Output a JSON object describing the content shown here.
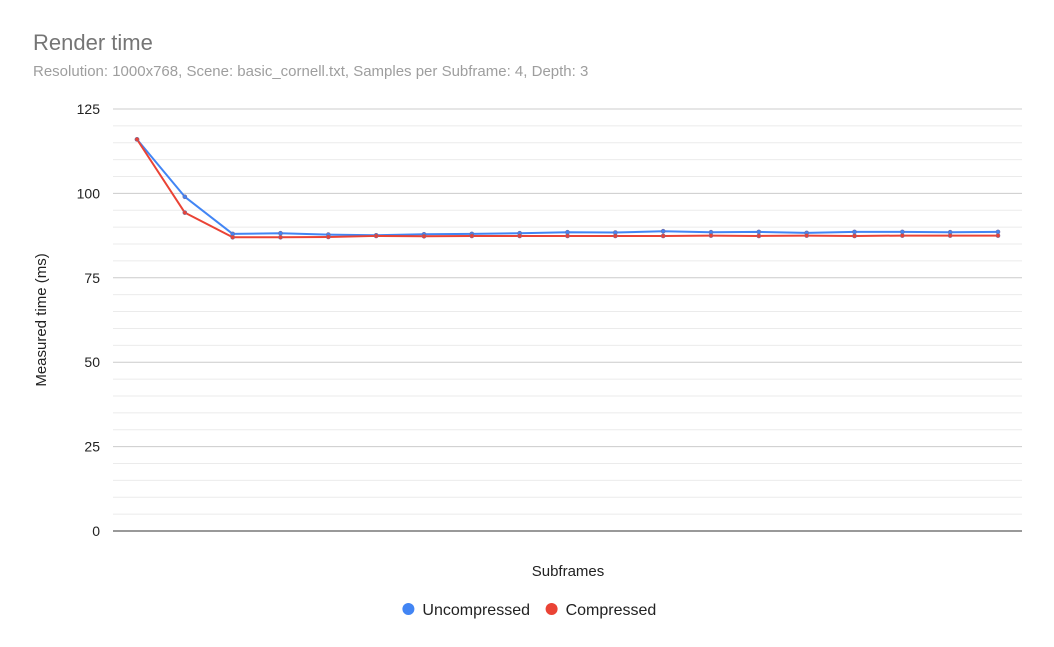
{
  "chart_data": {
    "type": "line",
    "title": "Render time",
    "subtitle": "Resolution: 1000x768, Scene: basic_cornell.txt, Samples per Subframe: 4, Depth: 3",
    "xlabel": "Subframes",
    "ylabel": "Measured time (ms)",
    "ylim": [
      0,
      125
    ],
    "yticks": [
      "0",
      "25",
      "50",
      "75",
      "100",
      "125"
    ],
    "grid": true,
    "legend_position": "bottom",
    "x": [
      1,
      2,
      3,
      4,
      5,
      6,
      7,
      8,
      9,
      10,
      11,
      12,
      13,
      14,
      15,
      16,
      17,
      18,
      19
    ],
    "series": [
      {
        "name": "Uncompressed",
        "color": "#4285f4",
        "values": [
          116,
          99,
          88,
          88.2,
          87.8,
          87.6,
          87.9,
          88,
          88.2,
          88.5,
          88.4,
          88.8,
          88.5,
          88.6,
          88.3,
          88.6,
          88.6,
          88.5,
          88.6
        ]
      },
      {
        "name": "Compressed",
        "color": "#ea4335",
        "values": [
          116,
          94.3,
          87,
          87,
          87.1,
          87.4,
          87.3,
          87.4,
          87.4,
          87.4,
          87.4,
          87.4,
          87.5,
          87.4,
          87.5,
          87.4,
          87.5,
          87.5,
          87.5
        ]
      }
    ]
  }
}
